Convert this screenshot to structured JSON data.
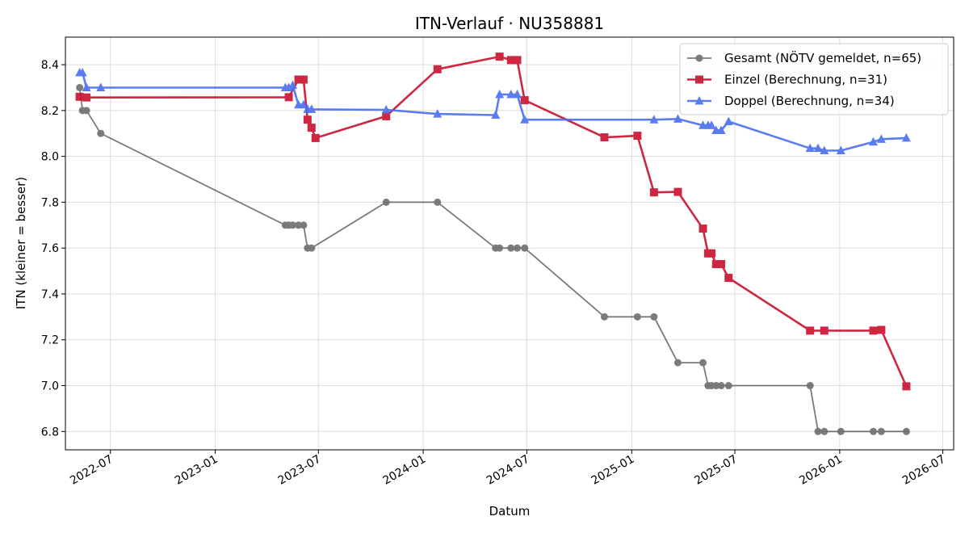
{
  "chart_data": {
    "type": "line",
    "title": "ITN-Verlauf · NU358881",
    "xlabel": "Datum",
    "ylabel": "ITN  (kleiner = besser)",
    "xlim": [
      "2022-04-13",
      "2026-07-20"
    ],
    "ylim": [
      6.72,
      8.52
    ],
    "x_ticks": [
      "2022-07",
      "2023-01",
      "2023-07",
      "2024-01",
      "2024-07",
      "2025-01",
      "2025-07",
      "2026-01",
      "2026-07"
    ],
    "y_ticks": [
      6.8,
      7.0,
      7.2,
      7.4,
      7.6,
      7.8,
      8.0,
      8.2,
      8.4
    ],
    "grid": true,
    "legend_position": "top-right",
    "series": [
      {
        "name": "Gesamt (NÖTV gemeldet, n=65)",
        "color": "#444444",
        "marker": "circle",
        "x": [
          "2022-05-08",
          "2022-05-13",
          "2022-05-20",
          "2022-06-14",
          "2023-05-04",
          "2023-05-10",
          "2023-05-17",
          "2023-05-27",
          "2023-06-05",
          "2023-06-12",
          "2023-06-19",
          "2023-10-28",
          "2024-01-26",
          "2024-05-07",
          "2024-05-14",
          "2024-06-03",
          "2024-06-14",
          "2024-06-27",
          "2024-11-14",
          "2025-01-11",
          "2025-02-09",
          "2025-03-23",
          "2025-05-06",
          "2025-05-15",
          "2025-05-21",
          "2025-05-29",
          "2025-06-07",
          "2025-06-20",
          "2025-11-10",
          "2025-11-24",
          "2025-12-05",
          "2026-01-03",
          "2026-03-01",
          "2026-03-15",
          "2026-04-28"
        ],
        "y": [
          8.3,
          8.2,
          8.2,
          8.1,
          7.7,
          7.7,
          7.7,
          7.7,
          7.7,
          7.6,
          7.6,
          7.8,
          7.8,
          7.6,
          7.6,
          7.6,
          7.6,
          7.6,
          7.3,
          7.3,
          7.3,
          7.1,
          7.1,
          7.0,
          7.0,
          7.0,
          7.0,
          7.0,
          7.0,
          6.8,
          6.8,
          6.8,
          6.8,
          6.8,
          6.8
        ]
      },
      {
        "name": "Einzel (Berechnung, n=31)",
        "color": "#c8102e",
        "marker": "square",
        "x": [
          "2022-05-08",
          "2022-05-20",
          "2023-05-10",
          "2023-05-27",
          "2023-06-05",
          "2023-06-12",
          "2023-06-19",
          "2023-06-26",
          "2023-10-28",
          "2024-01-26",
          "2024-05-14",
          "2024-06-03",
          "2024-06-14",
          "2024-06-27",
          "2024-11-14",
          "2025-01-11",
          "2025-02-09",
          "2025-03-23",
          "2025-05-06",
          "2025-05-15",
          "2025-05-21",
          "2025-05-29",
          "2025-06-07",
          "2025-06-20",
          "2025-11-10",
          "2025-12-05",
          "2026-03-01",
          "2026-03-15",
          "2026-04-28"
        ],
        "y": [
          8.26,
          8.257,
          8.258,
          8.335,
          8.335,
          8.16,
          8.125,
          8.08,
          8.175,
          8.38,
          8.435,
          8.42,
          8.42,
          8.245,
          8.083,
          8.09,
          7.843,
          7.845,
          7.685,
          7.577,
          7.577,
          7.53,
          7.53,
          7.47,
          7.24,
          7.24,
          7.24,
          7.243,
          6.997
        ]
      },
      {
        "name": "Doppel (Berechnung, n=34)",
        "color": "#4a6ef0",
        "marker": "triangle",
        "x": [
          "2022-05-08",
          "2022-05-13",
          "2022-05-20",
          "2022-06-14",
          "2023-05-04",
          "2023-05-10",
          "2023-05-17",
          "2023-05-27",
          "2023-06-05",
          "2023-06-12",
          "2023-06-19",
          "2023-10-28",
          "2024-01-26",
          "2024-05-07",
          "2024-05-14",
          "2024-06-03",
          "2024-06-14",
          "2024-06-27",
          "2025-02-09",
          "2025-03-23",
          "2025-05-06",
          "2025-05-15",
          "2025-05-21",
          "2025-05-29",
          "2025-06-07",
          "2025-06-20",
          "2025-11-10",
          "2025-11-24",
          "2025-12-05",
          "2026-01-03",
          "2026-03-01",
          "2026-03-15",
          "2026-04-28"
        ],
        "y": [
          8.365,
          8.365,
          8.3,
          8.3,
          8.3,
          8.3,
          8.31,
          8.225,
          8.225,
          8.205,
          8.205,
          8.203,
          8.185,
          8.18,
          8.27,
          8.27,
          8.27,
          8.16,
          8.16,
          8.163,
          8.135,
          8.135,
          8.135,
          8.113,
          8.113,
          8.152,
          8.035,
          8.035,
          8.025,
          8.025,
          8.063,
          8.075,
          8.08
        ]
      }
    ]
  }
}
